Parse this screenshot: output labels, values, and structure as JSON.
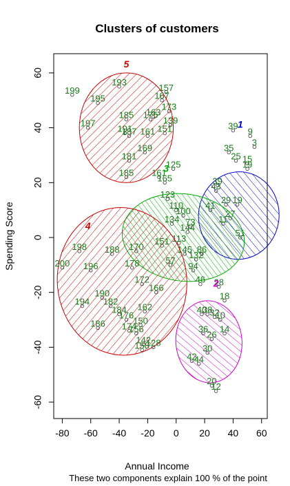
{
  "chart_data": {
    "type": "scatter",
    "title": "Clusters of customers",
    "xlabel": "Annual Income",
    "ylabel": "Spending Score",
    "caption": "These two components explain 100 % of the point",
    "xlim": [
      -86,
      64
    ],
    "ylim": [
      -66,
      67
    ],
    "xticks": [
      -80,
      -60,
      -40,
      -20,
      0,
      20,
      40,
      60
    ],
    "yticks": [
      -60,
      -40,
      -20,
      0,
      20,
      40,
      60
    ],
    "colors": {
      "points_label": "#1a7a1a",
      "cluster_1": "#0000cc",
      "cluster_2": "#cc00cc",
      "cluster_3": "#00aa00",
      "cluster_4": "#cc0000",
      "cluster_5": "#cc0000"
    },
    "clusters": [
      {
        "id": "1",
        "center": [
          44,
          8
        ],
        "radii": [
          16,
          28
        ],
        "angle": 85,
        "color": "#0000cc",
        "label_pos": [
          45,
          40
        ],
        "points": [
          {
            "l": "39",
            "x": 40,
            "y": 39
          },
          {
            "l": "9",
            "x": 52,
            "y": 37
          },
          {
            "l": "3",
            "x": 55,
            "y": 33
          },
          {
            "l": "35",
            "x": 37,
            "y": 31
          },
          {
            "l": "25",
            "x": 42,
            "y": 28
          },
          {
            "l": "15",
            "x": 50,
            "y": 27
          },
          {
            "l": "19",
            "x": 50,
            "y": 25
          },
          {
            "l": "39",
            "x": 29,
            "y": 19
          },
          {
            "l": "43",
            "x": 28,
            "y": 17
          },
          {
            "l": "29",
            "x": 35,
            "y": 12
          },
          {
            "l": "19",
            "x": 43,
            "y": 12
          },
          {
            "l": "41",
            "x": 24,
            "y": 10
          },
          {
            "l": "27",
            "x": 38,
            "y": 7
          },
          {
            "l": "51",
            "x": 45,
            "y": 0
          },
          {
            "l": "11",
            "x": 33,
            "y": 5
          }
        ]
      },
      {
        "id": "2",
        "center": [
          23,
          -38
        ],
        "radii": [
          15,
          23
        ],
        "angle": 95,
        "color": "#cc00cc",
        "label_pos": [
          28,
          -18
        ],
        "points": [
          {
            "l": "28",
            "x": 30,
            "y": -18
          },
          {
            "l": "18",
            "x": 34,
            "y": -23
          },
          {
            "l": "40",
            "x": 18,
            "y": -28
          },
          {
            "l": "38",
            "x": 22,
            "y": -28
          },
          {
            "l": "32",
            "x": 27,
            "y": -29
          },
          {
            "l": "10",
            "x": 31,
            "y": -30
          },
          {
            "l": "36",
            "x": 19,
            "y": -35
          },
          {
            "l": "14",
            "x": 34,
            "y": -35
          },
          {
            "l": "26",
            "x": 25,
            "y": -37
          },
          {
            "l": "30",
            "x": 22,
            "y": -42
          },
          {
            "l": "42",
            "x": 11,
            "y": -45
          },
          {
            "l": "44",
            "x": 16,
            "y": -46
          },
          {
            "l": "20",
            "x": 25,
            "y": -54
          },
          {
            "l": "12",
            "x": 28,
            "y": -56
          }
        ]
      },
      {
        "id": "3",
        "center": [
          5,
          0
        ],
        "radii": [
          16,
          42
        ],
        "angle": 82,
        "color": "#00aa00",
        "label_pos": [
          -7,
          24
        ],
        "points": [
          {
            "l": "125",
            "x": -2,
            "y": 25
          },
          {
            "l": "161",
            "x": -12,
            "y": 22
          },
          {
            "l": "165",
            "x": -8,
            "y": 20
          },
          {
            "l": "123",
            "x": -6,
            "y": 14
          },
          {
            "l": "110",
            "x": 0,
            "y": 10
          },
          {
            "l": "100",
            "x": 5,
            "y": 8
          },
          {
            "l": "134",
            "x": -3,
            "y": 5
          },
          {
            "l": "144",
            "x": 8,
            "y": 2
          },
          {
            "l": "113",
            "x": 2,
            "y": -2
          },
          {
            "l": "151",
            "x": -10,
            "y": -3
          },
          {
            "l": "145",
            "x": 6,
            "y": -6
          },
          {
            "l": "132",
            "x": 14,
            "y": -8
          },
          {
            "l": "94",
            "x": 12,
            "y": -12
          },
          {
            "l": "46",
            "x": 17,
            "y": -17
          },
          {
            "l": "57",
            "x": -4,
            "y": -10
          },
          {
            "l": "86",
            "x": 18,
            "y": -6
          },
          {
            "l": "73",
            "x": 10,
            "y": 4
          }
        ]
      },
      {
        "id": "4",
        "center": [
          -38,
          -16
        ],
        "radii": [
          45,
          27
        ],
        "angle": 5,
        "color": "#cc0000",
        "label_pos": [
          -62,
          3
        ],
        "points": [
          {
            "l": "198",
            "x": -68,
            "y": -5
          },
          {
            "l": "196",
            "x": -60,
            "y": -12
          },
          {
            "l": "200",
            "x": -80,
            "y": -11
          },
          {
            "l": "188",
            "x": -45,
            "y": -6
          },
          {
            "l": "170",
            "x": -28,
            "y": -5
          },
          {
            "l": "178",
            "x": -31,
            "y": -11
          },
          {
            "l": "190",
            "x": -52,
            "y": -22
          },
          {
            "l": "194",
            "x": -66,
            "y": -25
          },
          {
            "l": "182",
            "x": -46,
            "y": -25
          },
          {
            "l": "172",
            "x": -24,
            "y": -17
          },
          {
            "l": "166",
            "x": -14,
            "y": -20
          },
          {
            "l": "184",
            "x": -40,
            "y": -28
          },
          {
            "l": "176",
            "x": -35,
            "y": -30
          },
          {
            "l": "162",
            "x": -22,
            "y": -27
          },
          {
            "l": "150",
            "x": -25,
            "y": -32
          },
          {
            "l": "186",
            "x": -55,
            "y": -33
          },
          {
            "l": "174",
            "x": -33,
            "y": -34
          },
          {
            "l": "156",
            "x": -28,
            "y": -35
          },
          {
            "l": "142",
            "x": -23,
            "y": -39
          },
          {
            "l": "128",
            "x": -16,
            "y": -40
          },
          {
            "l": "158",
            "x": -24,
            "y": -41
          }
        ]
      },
      {
        "id": "5",
        "center": [
          -35,
          40
        ],
        "radii": [
          33,
          20
        ],
        "angle": 0,
        "color": "#cc0000",
        "label_pos": [
          -35,
          62
        ],
        "points": [
          {
            "l": "199",
            "x": -73,
            "y": 52
          },
          {
            "l": "193",
            "x": -40,
            "y": 55
          },
          {
            "l": "195",
            "x": -55,
            "y": 49
          },
          {
            "l": "157",
            "x": -7,
            "y": 53
          },
          {
            "l": "167",
            "x": -10,
            "y": 50
          },
          {
            "l": "185",
            "x": -35,
            "y": 43
          },
          {
            "l": "175",
            "x": -18,
            "y": 43
          },
          {
            "l": "163",
            "x": -16,
            "y": 44
          },
          {
            "l": "173",
            "x": -5,
            "y": 46
          },
          {
            "l": "197",
            "x": -62,
            "y": 40
          },
          {
            "l": "191",
            "x": -36,
            "y": 38
          },
          {
            "l": "187",
            "x": -33,
            "y": 37
          },
          {
            "l": "161",
            "x": -20,
            "y": 37
          },
          {
            "l": "151",
            "x": -8,
            "y": 38
          },
          {
            "l": "169",
            "x": -22,
            "y": 31
          },
          {
            "l": "181",
            "x": -33,
            "y": 28
          },
          {
            "l": "185",
            "x": -35,
            "y": 22
          },
          {
            "l": "139",
            "x": -4,
            "y": 41
          }
        ]
      }
    ]
  }
}
